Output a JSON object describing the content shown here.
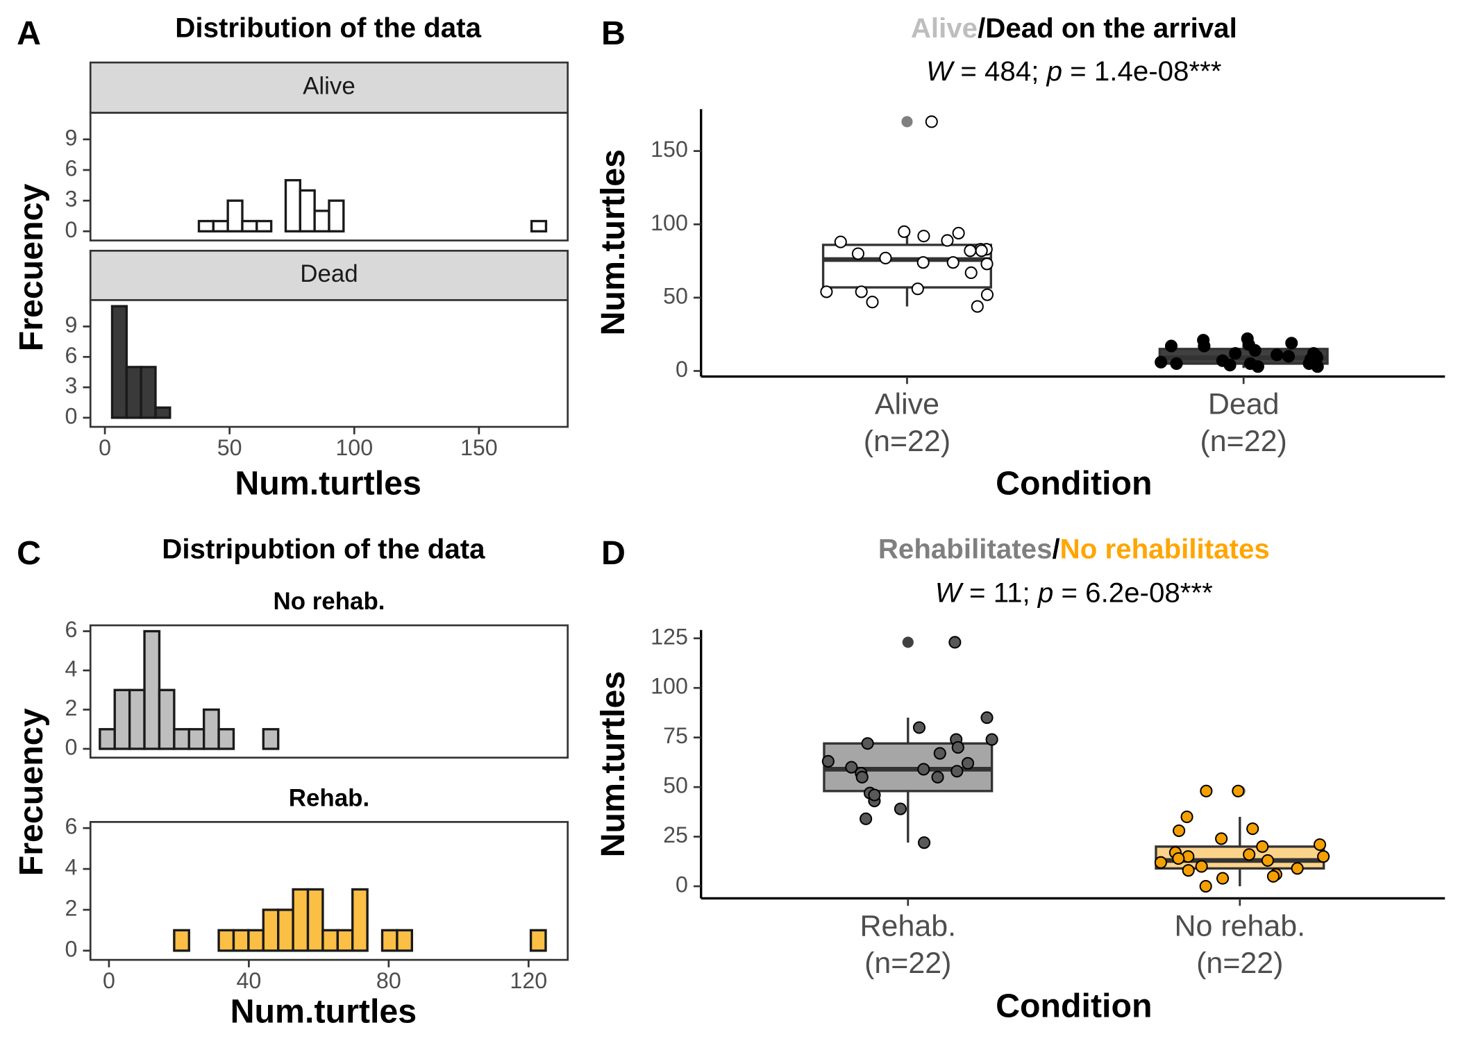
{
  "chart_data": [
    {
      "type": "histogram",
      "panel_label": "A",
      "title": "Distribution of the data",
      "x_label": "Num.turtles",
      "y_label": "Frecuency",
      "strip_style": "box",
      "bins": [
        2.9,
        8.7,
        14.5,
        20.3,
        26.1,
        31.9,
        37.7,
        43.5,
        49.3,
        55.1,
        60.9,
        66.7,
        72.5,
        78.3,
        84.1,
        89.9,
        95.7,
        101.5,
        107.3,
        113.1,
        118.9,
        124.7,
        130.5,
        136.3,
        142.1,
        147.9,
        153.7,
        159.5,
        165.3,
        171.1,
        176.9
      ],
      "facets": [
        {
          "name": "Alive",
          "color": "#ffffff",
          "counts": [
            0,
            0,
            0,
            0,
            0,
            0,
            1,
            1,
            3,
            1,
            1,
            0,
            5,
            4,
            2,
            3,
            0,
            0,
            0,
            0,
            0,
            0,
            0,
            0,
            0,
            0,
            0,
            0,
            0,
            1
          ]
        },
        {
          "name": "Dead",
          "color": "#3a3a3a",
          "counts": [
            11,
            5,
            5,
            1,
            0,
            0,
            0,
            0,
            0,
            0,
            0,
            0,
            0,
            0,
            0,
            0,
            0,
            0,
            0,
            0,
            0,
            0,
            0,
            0,
            0,
            0,
            0,
            0,
            0,
            0
          ]
        }
      ],
      "xlim": [
        -5.8,
        185.6
      ],
      "xticks": [
        0,
        50,
        100,
        150
      ],
      "ylim": [
        -0.9,
        11.6
      ],
      "yticks": [
        0,
        3,
        6,
        9
      ]
    },
    {
      "type": "box",
      "panel_label": "B",
      "title_parts": [
        {
          "text": "Alive",
          "color": "#bebebe"
        },
        {
          "text": "/Dead on the arrival",
          "color": "#000000"
        }
      ],
      "subtitle_parts": [
        {
          "text": "W",
          "italic": true
        },
        {
          "text": " = 484; ",
          "italic": false
        },
        {
          "text": "p",
          "italic": true
        },
        {
          "text": " = 1.4e-08***",
          "italic": false
        }
      ],
      "x_label": "Condition",
      "y_label": "Num.turtles",
      "categories": [
        "Alive\n(n=22)",
        "Dead\n(n=22)"
      ],
      "series": [
        {
          "box_color": "#ffffff",
          "point_color": "#ffffff",
          "outlier_color": "#7f7f7f",
          "q1": 57,
          "median": 76,
          "q3": 86,
          "whisker_low": 44,
          "whisker_high": 94,
          "outliers": [
            170
          ],
          "points": [
            170,
            95,
            92,
            94,
            89,
            88,
            83,
            83,
            82,
            82,
            80,
            77,
            74,
            73,
            74,
            67,
            56,
            54,
            54,
            52,
            47,
            44
          ]
        },
        {
          "box_color": "#404040",
          "point_color": "#000000",
          "outlier_color": "#7f7f7f",
          "q1": 5,
          "median": 9,
          "q3": 15,
          "whisker_low": 2,
          "whisker_high": 20,
          "outliers": [],
          "points": [
            18,
            17,
            12,
            10,
            9,
            8,
            6,
            5,
            4,
            3,
            3,
            5,
            7,
            10,
            19,
            12,
            11,
            21,
            22,
            14,
            17,
            5
          ]
        }
      ],
      "ylim": [
        -3.8,
        178.6
      ],
      "yticks": [
        0,
        50,
        100,
        150
      ]
    },
    {
      "type": "histogram",
      "panel_label": "C",
      "title": "Distripubtion of the data",
      "x_label": "Num.turtles",
      "y_label": "Frecuency",
      "strip_style": "plain",
      "bins": [
        -2.6,
        1.65,
        5.9,
        10.15,
        14.4,
        18.65,
        22.9,
        27.15,
        31.4,
        35.65,
        39.9,
        44.15,
        48.4,
        52.65,
        56.9,
        61.15,
        65.4,
        69.65,
        73.9,
        78.15,
        82.4,
        86.65,
        90.9,
        95.15,
        99.4,
        103.65,
        107.9,
        112.15,
        116.4,
        120.65,
        124.9
      ],
      "facets": [
        {
          "name": "No rehab.",
          "color": "#bebebe",
          "counts": [
            1,
            3,
            3,
            6,
            3,
            1,
            1,
            2,
            1,
            0,
            0,
            1,
            0,
            0,
            0,
            0,
            0,
            0,
            0,
            0,
            0,
            0,
            0,
            0,
            0,
            0,
            0,
            0,
            0,
            0
          ]
        },
        {
          "name": "Rehab.",
          "color": "#fbbf45",
          "counts": [
            0,
            0,
            0,
            0,
            0,
            1,
            0,
            0,
            1,
            1,
            1,
            2,
            2,
            3,
            3,
            1,
            1,
            3,
            0,
            1,
            1,
            0,
            0,
            0,
            0,
            0,
            0,
            0,
            0,
            1
          ]
        }
      ],
      "xlim": [
        -5.3,
        131.2
      ],
      "xticks": [
        0,
        40,
        80,
        120
      ],
      "ylim": [
        -0.45,
        6.3
      ],
      "yticks": [
        0,
        2,
        4,
        6
      ]
    },
    {
      "type": "box",
      "panel_label": "D",
      "title_parts": [
        {
          "text": "Rehabilitates",
          "color": "#7f7f7f"
        },
        {
          "text": "/",
          "color": "#000000"
        },
        {
          "text": "No rehabilitates",
          "color": "#ffa500"
        }
      ],
      "subtitle_parts": [
        {
          "text": "W",
          "italic": true
        },
        {
          "text": " = 11; ",
          "italic": false
        },
        {
          "text": "p",
          "italic": true
        },
        {
          "text": " = 6.2e-08***",
          "italic": false
        }
      ],
      "x_label": "Condition",
      "y_label": "Num.turtles",
      "categories": [
        "Rehab.\n(n=22)",
        "No rehab.\n(n=22)"
      ],
      "series": [
        {
          "box_color": "#a6a6a6",
          "point_color": "#595959",
          "outlier_color": "#404040",
          "q1": 48,
          "median": 59,
          "q3": 72,
          "whisker_low": 22,
          "whisker_high": 85,
          "outliers": [
            123
          ],
          "points": [
            123,
            85,
            80,
            74,
            74,
            72,
            70,
            67,
            63,
            62,
            60,
            59,
            58,
            57,
            55,
            55,
            47,
            43,
            39,
            34,
            22,
            46
          ]
        },
        {
          "box_color": "#fcd38b",
          "point_color": "#f5a000",
          "outlier_color": "#7f7f7f",
          "q1": 9,
          "median": 13,
          "q3": 20,
          "whisker_low": 0,
          "whisker_high": 35,
          "outliers": [
            48
          ],
          "points": [
            48,
            48,
            35,
            29,
            28,
            24,
            21,
            20,
            17,
            16,
            15,
            15,
            14,
            13,
            12,
            10,
            9,
            8,
            6,
            5,
            4,
            0
          ]
        }
      ],
      "ylim": [
        -6.1,
        129.2
      ],
      "yticks": [
        0,
        25,
        50,
        75,
        100,
        125
      ]
    }
  ]
}
